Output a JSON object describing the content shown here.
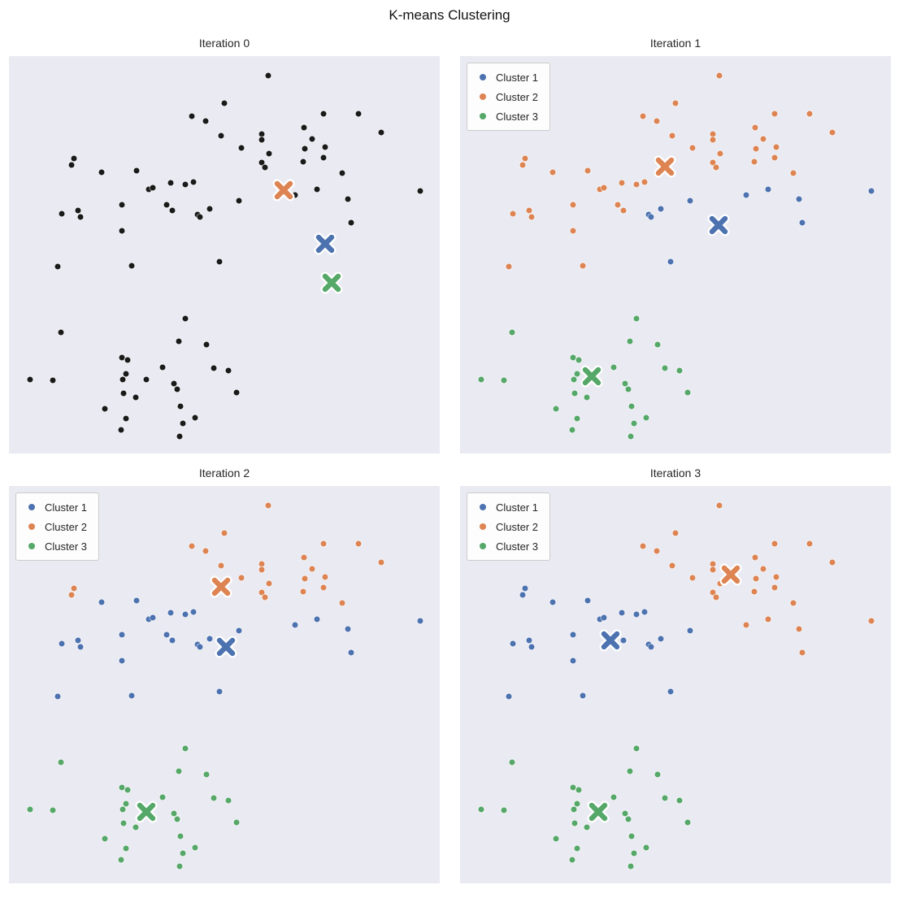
{
  "title": "K-means Clustering",
  "legend_labels": [
    "Cluster 1",
    "Cluster 2",
    "Cluster 3"
  ],
  "colors": {
    "cluster1": "#4C72B0",
    "cluster2": "#DD8452",
    "cluster3": "#55A868",
    "unassigned": "#1a1a1a",
    "plot_background": "#EAEAF2",
    "figure_background": "#FFFFFF",
    "legend_border": "#CCCCCC",
    "text": "#262626"
  },
  "chart_data": {
    "type": "scatter",
    "description": "K-means clustering progression over 4 iterations; same 75 points in each panel, coordinates are percent of plot area (x right, y down). Iteration 0 shows unassigned (black) points with initial centroids; later iterations color points by assigned cluster.",
    "axes": "hidden (no ticks, no gridlines)",
    "legend_position": "upper left (panels 1-3 only)",
    "points": [
      [
        60.2,
        4.9
      ],
      [
        50.0,
        11.9
      ],
      [
        42.5,
        15.1
      ],
      [
        45.7,
        16.4
      ],
      [
        58.7,
        19.6
      ],
      [
        68.5,
        18.0
      ],
      [
        81.1,
        14.5
      ],
      [
        86.4,
        19.2
      ],
      [
        49.2,
        20.0
      ],
      [
        54.0,
        23.1
      ],
      [
        58.7,
        21.1
      ],
      [
        60.4,
        24.5
      ],
      [
        68.7,
        23.3
      ],
      [
        70.4,
        20.9
      ],
      [
        73.4,
        22.9
      ],
      [
        58.7,
        26.8
      ],
      [
        59.4,
        28.0
      ],
      [
        68.3,
        26.6
      ],
      [
        73.0,
        25.6
      ],
      [
        77.4,
        29.4
      ],
      [
        66.4,
        35.0
      ],
      [
        71.5,
        33.5
      ],
      [
        78.7,
        36.0
      ],
      [
        95.5,
        33.9
      ],
      [
        79.4,
        41.9
      ],
      [
        53.4,
        36.4
      ],
      [
        73.0,
        14.5
      ],
      [
        15.1,
        25.8
      ],
      [
        14.5,
        27.4
      ],
      [
        21.5,
        29.2
      ],
      [
        29.6,
        28.8
      ],
      [
        32.5,
        33.5
      ],
      [
        33.4,
        33.1
      ],
      [
        37.5,
        31.9
      ],
      [
        40.9,
        32.3
      ],
      [
        42.8,
        31.7
      ],
      [
        12.3,
        39.7
      ],
      [
        16.0,
        38.9
      ],
      [
        16.6,
        40.5
      ],
      [
        26.2,
        37.4
      ],
      [
        36.6,
        37.4
      ],
      [
        37.9,
        38.9
      ],
      [
        43.8,
        39.9
      ],
      [
        44.3,
        40.5
      ],
      [
        46.6,
        38.4
      ],
      [
        26.2,
        44.0
      ],
      [
        28.5,
        52.8
      ],
      [
        48.9,
        51.7
      ],
      [
        11.3,
        53.0
      ],
      [
        12.1,
        69.5
      ],
      [
        39.4,
        71.8
      ],
      [
        45.8,
        72.6
      ],
      [
        26.2,
        75.9
      ],
      [
        27.5,
        76.5
      ],
      [
        35.7,
        78.3
      ],
      [
        47.5,
        78.5
      ],
      [
        50.9,
        79.1
      ],
      [
        4.9,
        81.4
      ],
      [
        10.2,
        81.6
      ],
      [
        26.4,
        81.4
      ],
      [
        27.2,
        80.0
      ],
      [
        38.3,
        82.4
      ],
      [
        39.1,
        83.8
      ],
      [
        26.6,
        84.9
      ],
      [
        29.4,
        85.9
      ],
      [
        22.3,
        88.8
      ],
      [
        39.8,
        88.1
      ],
      [
        52.8,
        84.7
      ],
      [
        43.2,
        91.0
      ],
      [
        27.2,
        91.2
      ],
      [
        26.0,
        94.1
      ],
      [
        40.4,
        92.4
      ],
      [
        39.6,
        95.7
      ],
      [
        31.9,
        81.4
      ],
      [
        41.0,
        66.0
      ]
    ],
    "assignments": {
      "iteration1": [
        2,
        2,
        2,
        2,
        2,
        2,
        2,
        2,
        2,
        2,
        2,
        2,
        2,
        2,
        2,
        2,
        2,
        2,
        2,
        2,
        1,
        1,
        1,
        1,
        1,
        1,
        2,
        2,
        2,
        2,
        2,
        2,
        2,
        2,
        2,
        2,
        2,
        2,
        2,
        2,
        2,
        2,
        1,
        1,
        1,
        2,
        2,
        1,
        2,
        3,
        3,
        3,
        3,
        3,
        3,
        3,
        3,
        3,
        3,
        3,
        3,
        3,
        3,
        3,
        3,
        3,
        3,
        3,
        3,
        3,
        3,
        3,
        3,
        3,
        3
      ],
      "iteration2": [
        2,
        2,
        2,
        2,
        2,
        2,
        2,
        2,
        2,
        2,
        2,
        2,
        2,
        2,
        2,
        2,
        2,
        2,
        2,
        2,
        1,
        1,
        1,
        1,
        1,
        1,
        2,
        2,
        2,
        1,
        1,
        1,
        1,
        1,
        1,
        1,
        1,
        1,
        1,
        1,
        1,
        1,
        1,
        1,
        1,
        1,
        1,
        1,
        1,
        3,
        3,
        3,
        3,
        3,
        3,
        3,
        3,
        3,
        3,
        3,
        3,
        3,
        3,
        3,
        3,
        3,
        3,
        3,
        3,
        3,
        3,
        3,
        3,
        3,
        3
      ],
      "iteration3": [
        2,
        2,
        2,
        2,
        2,
        2,
        2,
        2,
        2,
        2,
        2,
        2,
        2,
        2,
        2,
        2,
        2,
        2,
        2,
        2,
        2,
        2,
        2,
        2,
        2,
        1,
        2,
        1,
        1,
        1,
        1,
        1,
        1,
        1,
        1,
        1,
        1,
        1,
        1,
        1,
        1,
        1,
        1,
        1,
        1,
        1,
        1,
        1,
        1,
        3,
        3,
        3,
        3,
        3,
        3,
        3,
        3,
        3,
        3,
        3,
        3,
        3,
        3,
        3,
        3,
        3,
        3,
        3,
        3,
        3,
        3,
        3,
        3,
        3,
        3
      ]
    },
    "panels": [
      {
        "title": "Iteration 0",
        "legend": false,
        "assignment_key": null,
        "centroids": {
          "cluster1": [
            73.4,
            47.2
          ],
          "cluster2": [
            63.8,
            33.7
          ],
          "cluster3": [
            74.9,
            57.1
          ]
        }
      },
      {
        "title": "Iteration 1",
        "legend": true,
        "assignment_key": "iteration1",
        "centroids": {
          "cluster1": [
            60.0,
            42.5
          ],
          "cluster2": [
            47.5,
            27.8
          ],
          "cluster3": [
            30.6,
            80.6
          ]
        }
      },
      {
        "title": "Iteration 2",
        "legend": true,
        "assignment_key": "iteration2",
        "centroids": {
          "cluster1": [
            50.4,
            40.5
          ],
          "cluster2": [
            49.2,
            25.4
          ],
          "cluster3": [
            31.9,
            82.0
          ]
        }
      },
      {
        "title": "Iteration 3",
        "legend": true,
        "assignment_key": "iteration3",
        "centroids": {
          "cluster1": [
            34.9,
            38.9
          ],
          "cluster2": [
            62.8,
            22.3
          ],
          "cluster3": [
            32.1,
            82.0
          ]
        }
      }
    ]
  }
}
